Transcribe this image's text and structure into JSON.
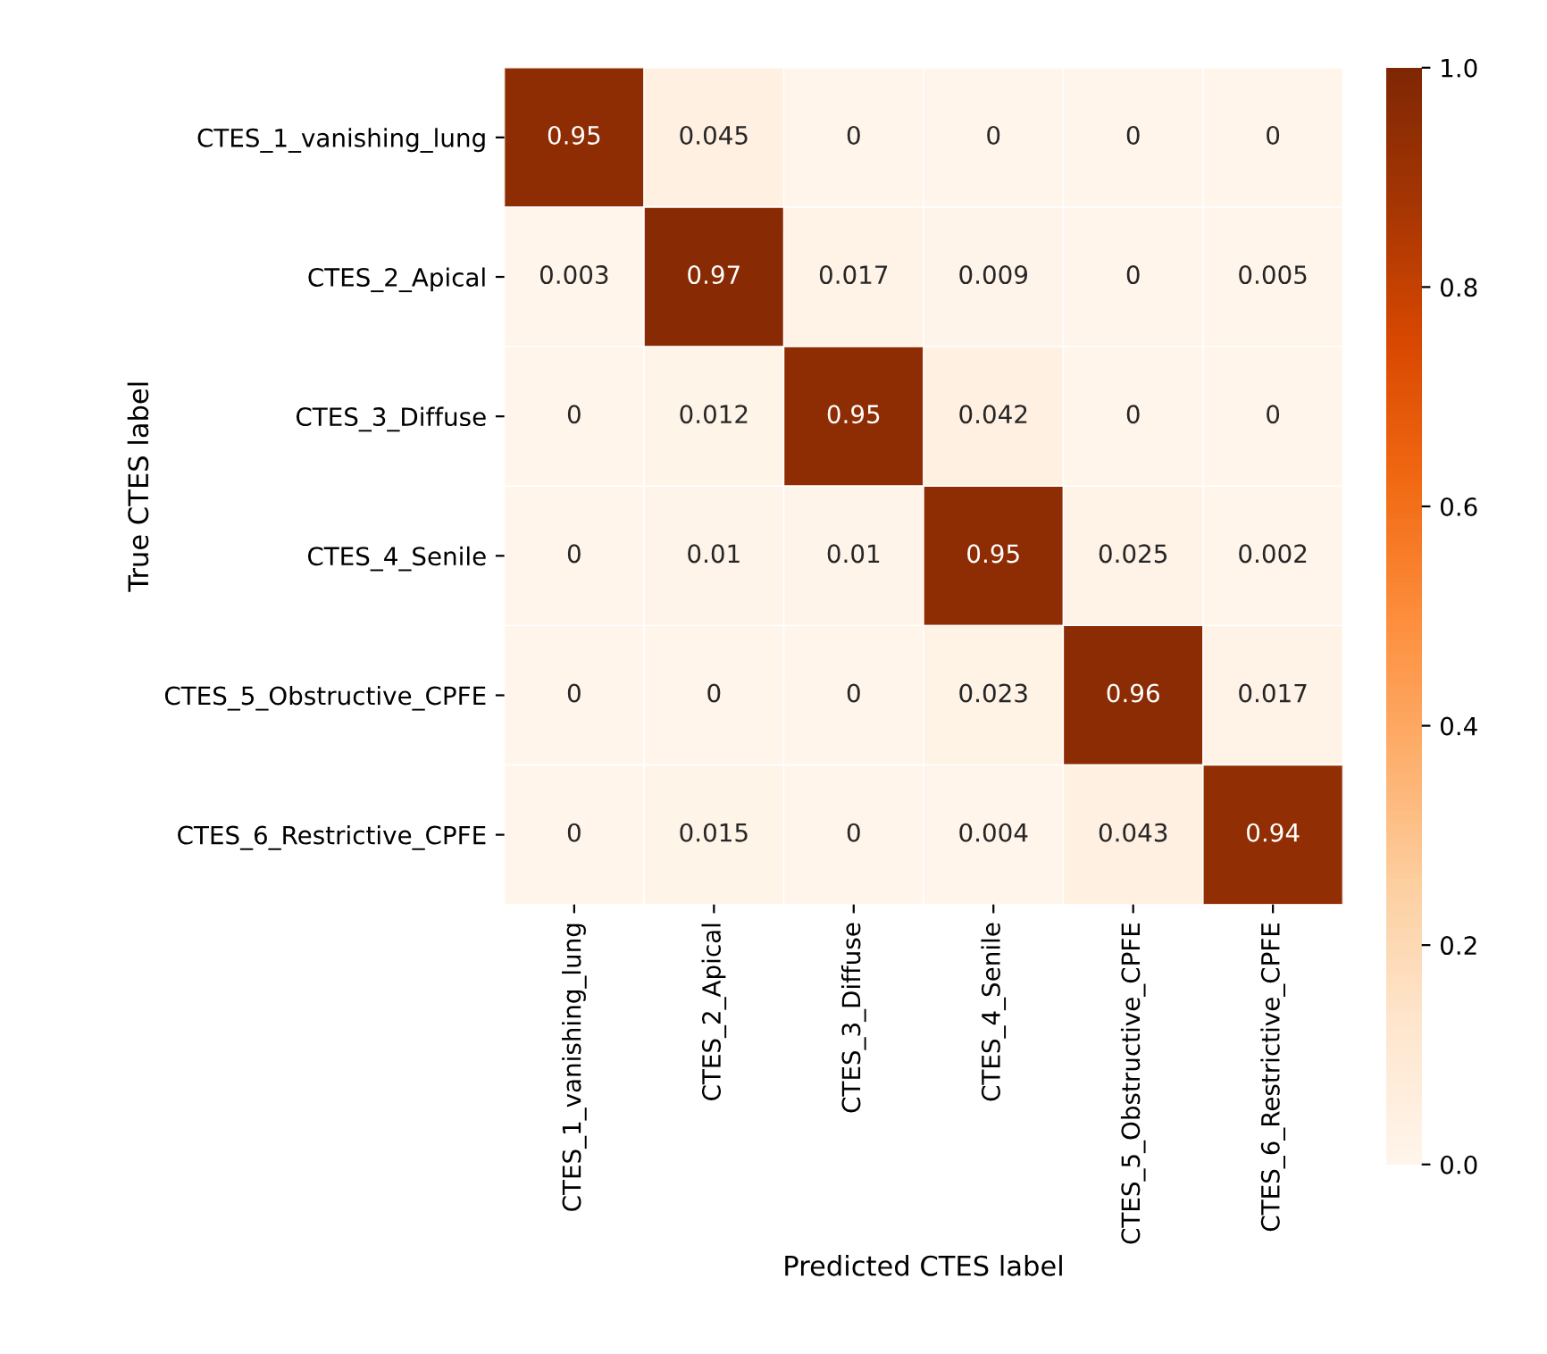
{
  "chart_data": {
    "type": "heatmap",
    "xlabel": "Predicted CTES label",
    "ylabel": "True CTES label",
    "categories": [
      "CTES_1_vanishing_lung",
      "CTES_2_Apical",
      "CTES_3_Diffuse",
      "CTES_4_Senile",
      "CTES_5_Obstructive_CPFE",
      "CTES_6_Restrictive_CPFE"
    ],
    "y_categories": [
      "CTES_1_vanishing_lung",
      "CTES_2_Apical",
      "CTES_3_Diffuse",
      "CTES_4_Senile",
      "CTES_5_Obstructive_CPFE",
      "CTES_6_Restrictive_CPFE"
    ],
    "cells": [
      [
        0.95,
        0.045,
        0,
        0,
        0,
        0
      ],
      [
        0.003,
        0.97,
        0.017,
        0.009,
        0,
        0.005
      ],
      [
        0,
        0.012,
        0.95,
        0.042,
        0,
        0
      ],
      [
        0,
        0.01,
        0.01,
        0.95,
        0.025,
        0.002
      ],
      [
        0,
        0,
        0,
        0.023,
        0.96,
        0.017
      ],
      [
        0,
        0.015,
        0,
        0.004,
        0.043,
        0.94
      ]
    ],
    "data_labels": true,
    "clim": [
      0.0,
      1.0
    ],
    "cticks": [
      {
        "value": 0.0,
        "label": "0.0"
      },
      {
        "value": 0.2,
        "label": "0.2"
      },
      {
        "value": 0.4,
        "label": "0.4"
      },
      {
        "value": 0.6,
        "label": "0.6"
      },
      {
        "value": 0.8,
        "label": "0.8"
      },
      {
        "value": 1.0,
        "label": "1.0"
      }
    ]
  }
}
